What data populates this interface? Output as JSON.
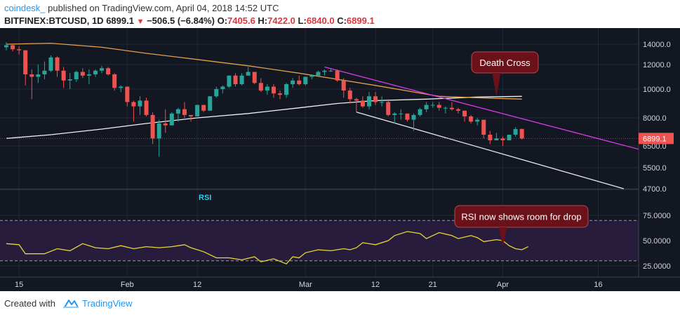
{
  "header": {
    "publisher": "coindesk_",
    "published_text": " published on TradingView.com, April 04, 2018 14:52 UTC",
    "symbol": "BITFINEX:BTCUSD, 1D",
    "last": "6899.1",
    "change": "−506.5 (−6.84%)",
    "o_label": "O:",
    "o": "7405.6",
    "h_label": "H:",
    "h": "7422.0",
    "l_label": "L:",
    "l": "6840.0",
    "c_label": "C:",
    "c": "6899.1"
  },
  "footer": {
    "created": "Created with",
    "brand": "TradingView"
  },
  "colors": {
    "background": "#131722",
    "rsi_background": "#281c3d",
    "up": "#26a69a",
    "down": "#ef5350",
    "ma_short": "#e1a04a",
    "ma_long": "#f0f0f0",
    "trend_magenta": "#d63be6",
    "rsi_line": "#e8d630",
    "callout": "#6b1119",
    "callout_border": "#b24a54"
  },
  "chart_data": [
    {
      "type": "candlestick",
      "title": "",
      "ylim": [
        4700,
        14000
      ],
      "y_ticks": [
        14000,
        12000,
        10000,
        8000,
        6500,
        5500,
        4700
      ],
      "y_tick_labels": [
        "14000.0",
        "12000.0",
        "10000.0",
        "8000.0",
        "6500.0",
        "5500.0",
        "4700.0"
      ],
      "x_ticks": [
        "15",
        "Feb",
        "12",
        "Mar",
        "12",
        "21",
        "Apr",
        "16"
      ],
      "x_tick_dates": [
        "2018-01-15",
        "2018-02-01",
        "2018-02-12",
        "2018-03-01",
        "2018-03-12",
        "2018-03-21",
        "2018-04-01",
        "2018-04-16"
      ],
      "x_range": [
        "2018-01-13",
        "2018-04-23"
      ],
      "last_price_label": "6899.1",
      "ohlc": [
        {
          "date": "2018-01-13",
          "o": 13700,
          "h": 14200,
          "l": 13400,
          "c": 13900
        },
        {
          "date": "2018-01-14",
          "o": 13900,
          "h": 14000,
          "l": 13300,
          "c": 13500
        },
        {
          "date": "2018-01-15",
          "o": 13500,
          "h": 13800,
          "l": 13000,
          "c": 13400
        },
        {
          "date": "2018-01-16",
          "o": 13400,
          "h": 13400,
          "l": 10300,
          "c": 11200
        },
        {
          "date": "2018-01-17",
          "o": 11200,
          "h": 11600,
          "l": 9300,
          "c": 11000
        },
        {
          "date": "2018-01-18",
          "o": 11000,
          "h": 12000,
          "l": 10500,
          "c": 11200
        },
        {
          "date": "2018-01-19",
          "o": 11200,
          "h": 12300,
          "l": 10800,
          "c": 11500
        },
        {
          "date": "2018-01-20",
          "o": 11500,
          "h": 12900,
          "l": 11400,
          "c": 12700
        },
        {
          "date": "2018-01-21",
          "o": 12700,
          "h": 12800,
          "l": 11000,
          "c": 11500
        },
        {
          "date": "2018-01-22",
          "o": 11500,
          "h": 11800,
          "l": 10100,
          "c": 10700
        },
        {
          "date": "2018-01-23",
          "o": 10700,
          "h": 11300,
          "l": 10000,
          "c": 10800
        },
        {
          "date": "2018-01-24",
          "o": 10800,
          "h": 11500,
          "l": 10600,
          "c": 11400
        },
        {
          "date": "2018-01-25",
          "o": 11400,
          "h": 11700,
          "l": 10900,
          "c": 11100
        },
        {
          "date": "2018-01-26",
          "o": 11100,
          "h": 11600,
          "l": 10400,
          "c": 11200
        },
        {
          "date": "2018-01-27",
          "o": 11200,
          "h": 11600,
          "l": 11000,
          "c": 11500
        },
        {
          "date": "2018-01-28",
          "o": 11500,
          "h": 11900,
          "l": 11300,
          "c": 11700
        },
        {
          "date": "2018-01-29",
          "o": 11700,
          "h": 11800,
          "l": 11100,
          "c": 11200
        },
        {
          "date": "2018-01-30",
          "o": 11200,
          "h": 11300,
          "l": 9900,
          "c": 10100
        },
        {
          "date": "2018-01-31",
          "o": 10100,
          "h": 10300,
          "l": 9800,
          "c": 10200
        },
        {
          "date": "2018-02-01",
          "o": 10200,
          "h": 10200,
          "l": 8800,
          "c": 9100
        },
        {
          "date": "2018-02-02",
          "o": 9100,
          "h": 9200,
          "l": 7800,
          "c": 8800
        },
        {
          "date": "2018-02-03",
          "o": 8800,
          "h": 9500,
          "l": 8200,
          "c": 9200
        },
        {
          "date": "2018-02-04",
          "o": 9200,
          "h": 9400,
          "l": 8100,
          "c": 8200
        },
        {
          "date": "2018-02-05",
          "o": 8200,
          "h": 8400,
          "l": 6600,
          "c": 6900
        },
        {
          "date": "2018-02-06",
          "o": 6900,
          "h": 7900,
          "l": 6000,
          "c": 7700
        },
        {
          "date": "2018-02-07",
          "o": 7700,
          "h": 8600,
          "l": 7200,
          "c": 7600
        },
        {
          "date": "2018-02-08",
          "o": 7600,
          "h": 8400,
          "l": 7600,
          "c": 8300
        },
        {
          "date": "2018-02-09",
          "o": 8300,
          "h": 8700,
          "l": 7800,
          "c": 8600
        },
        {
          "date": "2018-02-10",
          "o": 8600,
          "h": 9100,
          "l": 8000,
          "c": 8200
        },
        {
          "date": "2018-02-11",
          "o": 8200,
          "h": 8200,
          "l": 7800,
          "c": 8100
        },
        {
          "date": "2018-02-12",
          "o": 8100,
          "h": 8900,
          "l": 8100,
          "c": 8900
        },
        {
          "date": "2018-02-13",
          "o": 8900,
          "h": 8900,
          "l": 8400,
          "c": 8500
        },
        {
          "date": "2018-02-14",
          "o": 8500,
          "h": 9500,
          "l": 8500,
          "c": 9500
        },
        {
          "date": "2018-02-15",
          "o": 9500,
          "h": 10200,
          "l": 9400,
          "c": 10000
        },
        {
          "date": "2018-02-16",
          "o": 10000,
          "h": 10300,
          "l": 9700,
          "c": 10200
        },
        {
          "date": "2018-02-17",
          "o": 10200,
          "h": 11100,
          "l": 10100,
          "c": 11100
        },
        {
          "date": "2018-02-18",
          "o": 11100,
          "h": 11300,
          "l": 10200,
          "c": 10400
        },
        {
          "date": "2018-02-19",
          "o": 10400,
          "h": 11300,
          "l": 10300,
          "c": 11100
        },
        {
          "date": "2018-02-20",
          "o": 11100,
          "h": 11800,
          "l": 11100,
          "c": 11400
        },
        {
          "date": "2018-02-21",
          "o": 11400,
          "h": 11400,
          "l": 10400,
          "c": 10500
        },
        {
          "date": "2018-02-22",
          "o": 10500,
          "h": 10900,
          "l": 9800,
          "c": 9900
        },
        {
          "date": "2018-02-23",
          "o": 9900,
          "h": 10400,
          "l": 9600,
          "c": 10200
        },
        {
          "date": "2018-02-24",
          "o": 10200,
          "h": 10400,
          "l": 9400,
          "c": 9700
        },
        {
          "date": "2018-02-25",
          "o": 9700,
          "h": 9900,
          "l": 9300,
          "c": 9600
        },
        {
          "date": "2018-02-26",
          "o": 9600,
          "h": 10500,
          "l": 9400,
          "c": 10400
        },
        {
          "date": "2018-02-27",
          "o": 10400,
          "h": 10900,
          "l": 10100,
          "c": 10700
        },
        {
          "date": "2018-02-28",
          "o": 10700,
          "h": 11100,
          "l": 10300,
          "c": 10400
        },
        {
          "date": "2018-03-01",
          "o": 10400,
          "h": 11000,
          "l": 10300,
          "c": 11000
        },
        {
          "date": "2018-03-02",
          "o": 11000,
          "h": 11200,
          "l": 10800,
          "c": 11100
        },
        {
          "date": "2018-03-03",
          "o": 11100,
          "h": 11500,
          "l": 11000,
          "c": 11400
        },
        {
          "date": "2018-03-04",
          "o": 11400,
          "h": 11600,
          "l": 11100,
          "c": 11500
        },
        {
          "date": "2018-03-05",
          "o": 11500,
          "h": 11700,
          "l": 11400,
          "c": 11500
        },
        {
          "date": "2018-03-06",
          "o": 11500,
          "h": 11600,
          "l": 10600,
          "c": 10700
        },
        {
          "date": "2018-03-07",
          "o": 10700,
          "h": 10900,
          "l": 9400,
          "c": 9900
        },
        {
          "date": "2018-03-08",
          "o": 9900,
          "h": 10100,
          "l": 9000,
          "c": 9300
        },
        {
          "date": "2018-03-09",
          "o": 9300,
          "h": 9400,
          "l": 8400,
          "c": 9200
        },
        {
          "date": "2018-03-10",
          "o": 9200,
          "h": 9500,
          "l": 8700,
          "c": 8800
        },
        {
          "date": "2018-03-11",
          "o": 8800,
          "h": 9800,
          "l": 8600,
          "c": 9500
        },
        {
          "date": "2018-03-12",
          "o": 9500,
          "h": 9800,
          "l": 8900,
          "c": 9100
        },
        {
          "date": "2018-03-13",
          "o": 9100,
          "h": 9500,
          "l": 8800,
          "c": 9100
        },
        {
          "date": "2018-03-14",
          "o": 9100,
          "h": 9300,
          "l": 8100,
          "c": 8200
        },
        {
          "date": "2018-03-15",
          "o": 8200,
          "h": 8400,
          "l": 7700,
          "c": 8300
        },
        {
          "date": "2018-03-16",
          "o": 8300,
          "h": 8600,
          "l": 7900,
          "c": 8300
        },
        {
          "date": "2018-03-17",
          "o": 8300,
          "h": 8300,
          "l": 7800,
          "c": 7900
        },
        {
          "date": "2018-03-18",
          "o": 7900,
          "h": 8300,
          "l": 7300,
          "c": 8200
        },
        {
          "date": "2018-03-19",
          "o": 8200,
          "h": 8700,
          "l": 8100,
          "c": 8600
        },
        {
          "date": "2018-03-20",
          "o": 8600,
          "h": 9100,
          "l": 8400,
          "c": 8900
        },
        {
          "date": "2018-03-21",
          "o": 8900,
          "h": 9100,
          "l": 8700,
          "c": 8900
        },
        {
          "date": "2018-03-22",
          "o": 8900,
          "h": 9100,
          "l": 8500,
          "c": 8700
        },
        {
          "date": "2018-03-23",
          "o": 8700,
          "h": 8800,
          "l": 8300,
          "c": 8700
        },
        {
          "date": "2018-03-24",
          "o": 8700,
          "h": 9100,
          "l": 8500,
          "c": 8600
        },
        {
          "date": "2018-03-25",
          "o": 8600,
          "h": 8700,
          "l": 8300,
          "c": 8500
        },
        {
          "date": "2018-03-26",
          "o": 8500,
          "h": 8500,
          "l": 7800,
          "c": 8100
        },
        {
          "date": "2018-03-27",
          "o": 8100,
          "h": 8200,
          "l": 7700,
          "c": 7800
        },
        {
          "date": "2018-03-28",
          "o": 7800,
          "h": 8000,
          "l": 7600,
          "c": 7900
        },
        {
          "date": "2018-03-29",
          "o": 7900,
          "h": 7900,
          "l": 6900,
          "c": 7100
        },
        {
          "date": "2018-03-30",
          "o": 7100,
          "h": 7300,
          "l": 6600,
          "c": 6800
        },
        {
          "date": "2018-03-31",
          "o": 6800,
          "h": 7200,
          "l": 6800,
          "c": 6900
        },
        {
          "date": "2018-04-01",
          "o": 6900,
          "h": 7000,
          "l": 6500,
          "c": 6800
        },
        {
          "date": "2018-04-02",
          "o": 6800,
          "h": 7100,
          "l": 6800,
          "c": 7100
        },
        {
          "date": "2018-04-03",
          "o": 7100,
          "h": 7500,
          "l": 7000,
          "c": 7400
        },
        {
          "date": "2018-04-04",
          "o": 7405.6,
          "h": 7422,
          "l": 6840,
          "c": 6899.1
        }
      ],
      "ma_short": [
        [
          "2018-01-13",
          14000
        ],
        [
          "2018-01-20",
          14100
        ],
        [
          "2018-01-28",
          13700
        ],
        [
          "2018-02-04",
          13100
        ],
        [
          "2018-02-12",
          12500
        ],
        [
          "2018-02-20",
          11900
        ],
        [
          "2018-02-28",
          11300
        ],
        [
          "2018-03-06",
          10800
        ],
        [
          "2018-03-12",
          10300
        ],
        [
          "2018-03-18",
          9800
        ],
        [
          "2018-03-22",
          9500
        ],
        [
          "2018-03-28",
          9400
        ],
        [
          "2018-04-04",
          9300
        ]
      ],
      "ma_long": [
        [
          "2018-01-13",
          6900
        ],
        [
          "2018-01-20",
          7100
        ],
        [
          "2018-01-28",
          7400
        ],
        [
          "2018-02-04",
          7700
        ],
        [
          "2018-02-12",
          8000
        ],
        [
          "2018-02-20",
          8300
        ],
        [
          "2018-02-28",
          8700
        ],
        [
          "2018-03-06",
          9000
        ],
        [
          "2018-03-12",
          9200
        ],
        [
          "2018-03-20",
          9300
        ],
        [
          "2018-03-28",
          9450
        ],
        [
          "2018-04-04",
          9500
        ]
      ],
      "trendlines": [
        {
          "name": "magenta-trendline",
          "from": [
            "2018-03-04",
            11800
          ],
          "to": [
            "2018-04-23",
            6300
          ]
        },
        {
          "name": "white-support",
          "from": [
            "2018-03-09",
            8400
          ],
          "to": [
            "2018-04-20",
            4700
          ]
        }
      ],
      "annotations": [
        {
          "text": "Death Cross",
          "target": [
            "2018-03-31",
            9450
          ]
        }
      ]
    },
    {
      "type": "line",
      "title": "RSI",
      "ylim": [
        20,
        82
      ],
      "y_ticks": [
        75,
        50,
        25
      ],
      "y_tick_labels": [
        "75.0000",
        "50.0000",
        "25.0000"
      ],
      "bands": [
        70,
        30
      ],
      "values": [
        [
          "2018-01-13",
          47
        ],
        [
          "2018-01-15",
          46
        ],
        [
          "2018-01-16",
          37
        ],
        [
          "2018-01-19",
          37
        ],
        [
          "2018-01-21",
          42
        ],
        [
          "2018-01-23",
          40
        ],
        [
          "2018-01-25",
          47
        ],
        [
          "2018-01-27",
          43
        ],
        [
          "2018-01-29",
          42
        ],
        [
          "2018-01-31",
          45
        ],
        [
          "2018-02-02",
          42
        ],
        [
          "2018-02-04",
          44
        ],
        [
          "2018-02-06",
          43
        ],
        [
          "2018-02-08",
          44
        ],
        [
          "2018-02-10",
          46
        ],
        [
          "2018-02-11",
          43
        ],
        [
          "2018-02-13",
          39
        ],
        [
          "2018-02-15",
          33
        ],
        [
          "2018-02-17",
          33
        ],
        [
          "2018-02-19",
          31
        ],
        [
          "2018-02-21",
          34
        ],
        [
          "2018-02-22",
          29
        ],
        [
          "2018-02-24",
          32
        ],
        [
          "2018-02-26",
          27
        ],
        [
          "2018-02-27",
          34
        ],
        [
          "2018-02-28",
          33
        ],
        [
          "2018-03-01",
          38
        ],
        [
          "2018-03-03",
          41
        ],
        [
          "2018-03-05",
          40
        ],
        [
          "2018-03-07",
          42
        ],
        [
          "2018-03-08",
          41
        ],
        [
          "2018-03-09",
          43
        ],
        [
          "2018-03-10",
          48
        ],
        [
          "2018-03-12",
          46
        ],
        [
          "2018-03-14",
          50
        ],
        [
          "2018-03-15",
          55
        ],
        [
          "2018-03-17",
          59
        ],
        [
          "2018-03-19",
          57
        ],
        [
          "2018-03-20",
          52
        ],
        [
          "2018-03-21",
          55
        ],
        [
          "2018-03-22",
          58
        ],
        [
          "2018-03-24",
          55
        ],
        [
          "2018-03-25",
          52
        ],
        [
          "2018-03-27",
          55
        ],
        [
          "2018-03-28",
          53
        ],
        [
          "2018-03-29",
          49
        ],
        [
          "2018-03-30",
          50
        ],
        [
          "2018-03-31",
          51
        ],
        [
          "2018-04-01",
          50
        ],
        [
          "2018-04-02",
          45
        ],
        [
          "2018-04-03",
          42
        ],
        [
          "2018-04-04",
          41
        ],
        [
          "2018-04-05",
          44
        ]
      ],
      "x_range": [
        "2018-01-13",
        "2018-04-23"
      ],
      "annotations": [
        {
          "text": "RSI now shows room for drop",
          "target": [
            "2018-04-01",
            44
          ]
        }
      ]
    }
  ]
}
